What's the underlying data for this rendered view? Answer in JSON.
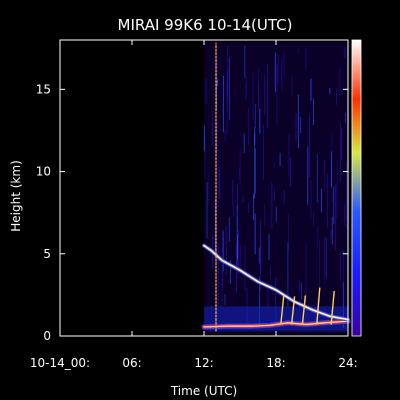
{
  "chart_data": {
    "type": "heatmap",
    "title": "MIRAI 99K6 10-14(UTC)",
    "xlabel": "Time (UTC)",
    "ylabel": "Height (km)",
    "xlim": [
      0,
      24
    ],
    "ylim": [
      0,
      18
    ],
    "xticks": [
      {
        "value": 0,
        "label": "10-14_00:"
      },
      {
        "value": 6,
        "label": "06:"
      },
      {
        "value": 12,
        "label": "12:"
      },
      {
        "value": 18,
        "label": "18:"
      },
      {
        "value": 24,
        "label": "24:"
      }
    ],
    "yticks": [
      {
        "value": 0,
        "label": "0"
      },
      {
        "value": 5,
        "label": "5"
      },
      {
        "value": 10,
        "label": "10"
      },
      {
        "value": 15,
        "label": "15"
      }
    ],
    "data_start_hour": 12.0,
    "colorbar": [
      "#3a00a0",
      "#1a1aff",
      "#2a58ff",
      "#d8e840",
      "#ff3000",
      "#ffffff"
    ],
    "layers": [
      {
        "name": "near-surface echo",
        "points": [
          {
            "t": 12.0,
            "h": 0.55
          },
          {
            "t": 14.0,
            "h": 0.6
          },
          {
            "t": 16.0,
            "h": 0.6
          },
          {
            "t": 17.5,
            "h": 0.65
          },
          {
            "t": 19.0,
            "h": 0.8
          },
          {
            "t": 20.5,
            "h": 0.7
          },
          {
            "t": 22.0,
            "h": 0.8
          },
          {
            "t": 24.0,
            "h": 0.9
          }
        ]
      },
      {
        "name": "descending layer",
        "points": [
          {
            "t": 12.0,
            "h": 5.5
          },
          {
            "t": 12.6,
            "h": 5.2
          },
          {
            "t": 13.5,
            "h": 4.6
          },
          {
            "t": 15.0,
            "h": 4.0
          },
          {
            "t": 16.5,
            "h": 3.3
          },
          {
            "t": 18.0,
            "h": 2.8
          },
          {
            "t": 19.5,
            "h": 2.1
          },
          {
            "t": 21.0,
            "h": 1.6
          },
          {
            "t": 22.5,
            "h": 1.2
          },
          {
            "t": 24.0,
            "h": 1.0
          }
        ]
      },
      {
        "name": "vertical streak",
        "points": [
          {
            "t": 13.0,
            "h": 0.3
          },
          {
            "t": 13.0,
            "h": 17.8
          }
        ]
      }
    ]
  }
}
